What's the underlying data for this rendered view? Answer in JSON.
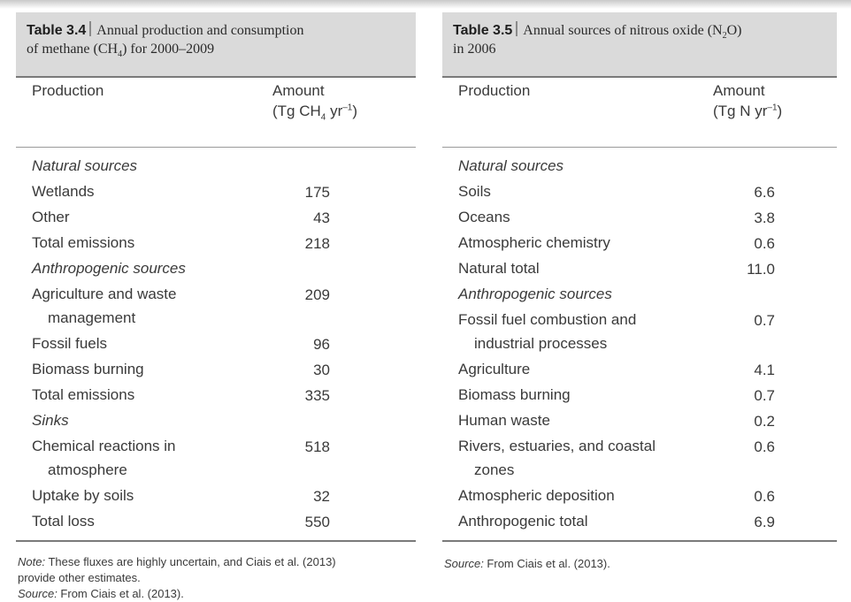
{
  "table_left": {
    "number": "Table 3.4",
    "caption_line1": "Annual production and consumption",
    "caption_line2_pre": "of methane (CH",
    "caption_line2_sub": "4",
    "caption_line2_post": ") for 2000–2009",
    "col_production": "Production",
    "col_amount_line1": "Amount",
    "col_amount_unit_pre": "(Tg CH",
    "col_amount_unit_sub": "4",
    "col_amount_unit_mid": " yr",
    "col_amount_unit_sup": "–1",
    "col_amount_unit_post": ")",
    "rows": [
      {
        "label": "Natural sources",
        "value": ""
      },
      {
        "label": "Wetlands",
        "value": "175"
      },
      {
        "label": "Other",
        "value": "43"
      },
      {
        "label": "Total emissions",
        "value": "218"
      },
      {
        "label": "Anthropogenic sources",
        "value": ""
      },
      {
        "label": "Agriculture and waste",
        "label_cont": "management",
        "value": "209"
      },
      {
        "label": "Fossil fuels",
        "value": "96"
      },
      {
        "label": "Biomass burning",
        "value": "30"
      },
      {
        "label": "Total emissions",
        "value": "335"
      },
      {
        "label": "Sinks",
        "value": ""
      },
      {
        "label": "Chemical reactions in",
        "label_cont": "atmosphere",
        "value": "518"
      },
      {
        "label": "Uptake by soils",
        "value": "32"
      },
      {
        "label": "Total loss",
        "value": "550"
      }
    ],
    "note_label": "Note:",
    "note_text": " These fluxes are highly uncertain, and Ciais et al. (2013)",
    "note_text2": "provide other estimates.",
    "source_label": "Source:",
    "source_text": " From Ciais et al. (2013)."
  },
  "table_right": {
    "number": "Table 3.5",
    "caption_line1_pre": "Annual sources of nitrous oxide (N",
    "caption_line1_sub": "2",
    "caption_line1_post": "O)",
    "caption_line2": "in 2006",
    "col_production": "Production",
    "col_amount_line1": "Amount",
    "col_amount_unit_pre": "(Tg N yr",
    "col_amount_unit_sup": "–1",
    "col_amount_unit_post": ")",
    "rows": [
      {
        "label": "Natural sources",
        "value": ""
      },
      {
        "label": "Soils",
        "value": "6.6"
      },
      {
        "label": "Oceans",
        "value": "3.8"
      },
      {
        "label": "Atmospheric chemistry",
        "value": "0.6"
      },
      {
        "label": "Natural total",
        "value": "11.0"
      },
      {
        "label": "Anthropogenic sources",
        "value": ""
      },
      {
        "label": "Fossil fuel combustion and",
        "label_cont": "industrial processes",
        "value": "0.7"
      },
      {
        "label": "Agriculture",
        "value": "4.1"
      },
      {
        "label": "Biomass burning",
        "value": "0.7"
      },
      {
        "label": "Human waste",
        "value": "0.2"
      },
      {
        "label": "Rivers, estuaries, and coastal",
        "label_cont": "zones",
        "value": "0.6"
      },
      {
        "label": "Atmospheric deposition",
        "value": "0.6"
      },
      {
        "label": "Anthropogenic total",
        "value": "6.9"
      }
    ],
    "source_label": "Source:",
    "source_text": " From Ciais et al. (2013)."
  }
}
